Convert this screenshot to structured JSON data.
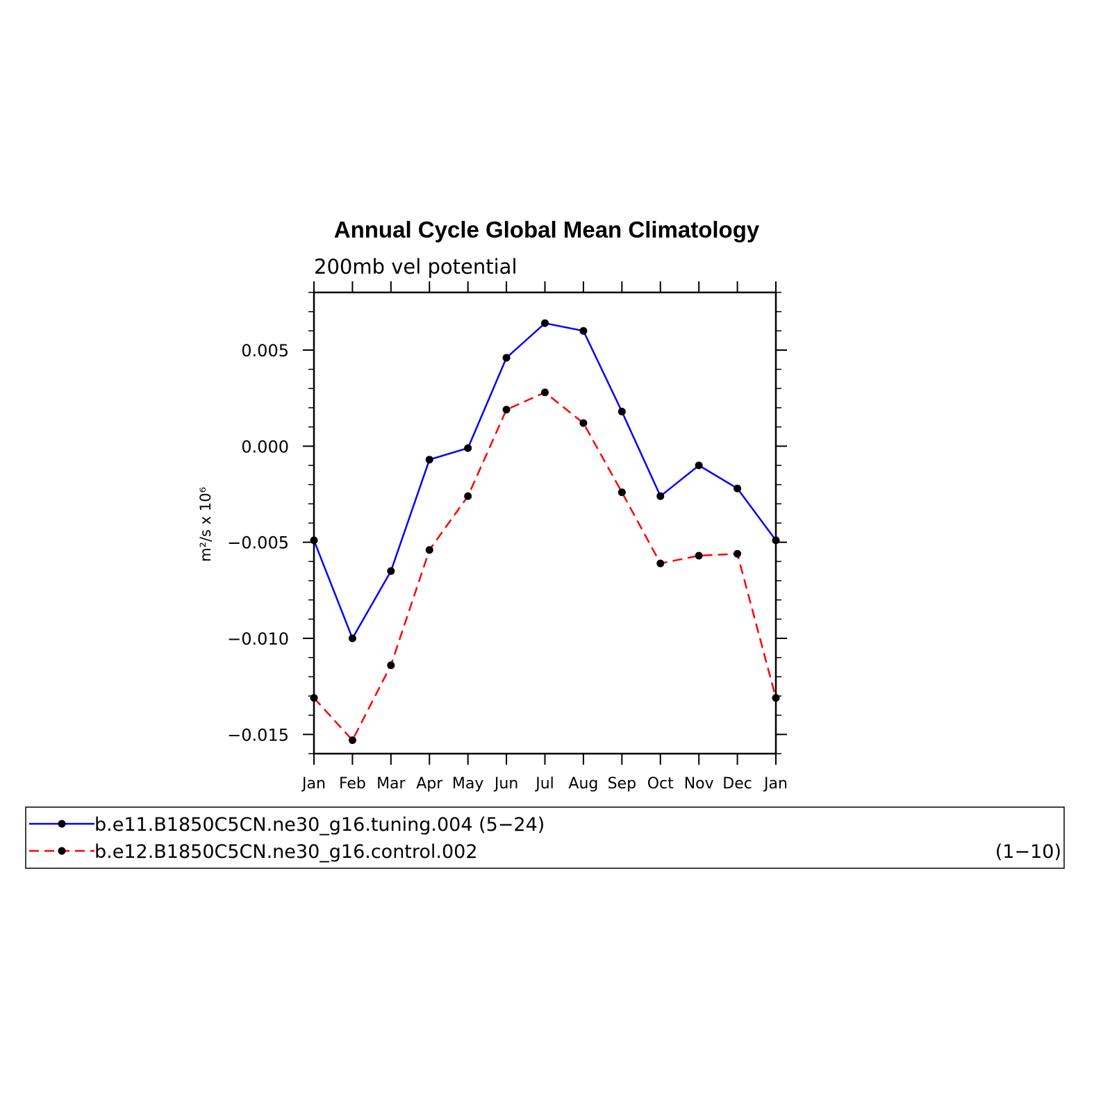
{
  "chart_data": {
    "type": "line",
    "title": "Annual Cycle Global Mean Climatology",
    "subtitle": "200mb vel potential",
    "ylabel": "m²/s x 10⁶",
    "xlabel": "",
    "categories": [
      "Jan",
      "Feb",
      "Mar",
      "Apr",
      "May",
      "Jun",
      "Jul",
      "Aug",
      "Sep",
      "Oct",
      "Nov",
      "Dec",
      "Jan"
    ],
    "ylim": [
      -0.016,
      0.008
    ],
    "yticks": [
      0.005,
      0.0,
      -0.005,
      -0.01,
      -0.015
    ],
    "ytick_labels": [
      "0.005",
      "0.000",
      "−0.005",
      "−0.010",
      "−0.015"
    ],
    "series": [
      {
        "name": "b.e11.B1850C5CN.ne30_g16.tuning.004 (5−24)",
        "range_label": "",
        "color": "#0000ff",
        "dash": "solid",
        "values": [
          -0.0049,
          -0.01,
          -0.0065,
          -0.0007,
          -0.0001,
          0.0046,
          0.0064,
          0.006,
          0.0018,
          -0.0026,
          -0.001,
          -0.0022,
          -0.0049
        ]
      },
      {
        "name": "b.e12.B1850C5CN.ne30_g16.control.002",
        "range_label": "(1−10)",
        "color": "#ff0000",
        "dash": "dashed",
        "values": [
          -0.0131,
          -0.0153,
          -0.0114,
          -0.0054,
          -0.0026,
          0.0019,
          0.0028,
          0.0012,
          -0.0024,
          -0.0061,
          -0.0057,
          -0.0056,
          -0.0131
        ]
      }
    ],
    "marker_color": "#000000",
    "legend_position": "bottom",
    "grid": false
  }
}
